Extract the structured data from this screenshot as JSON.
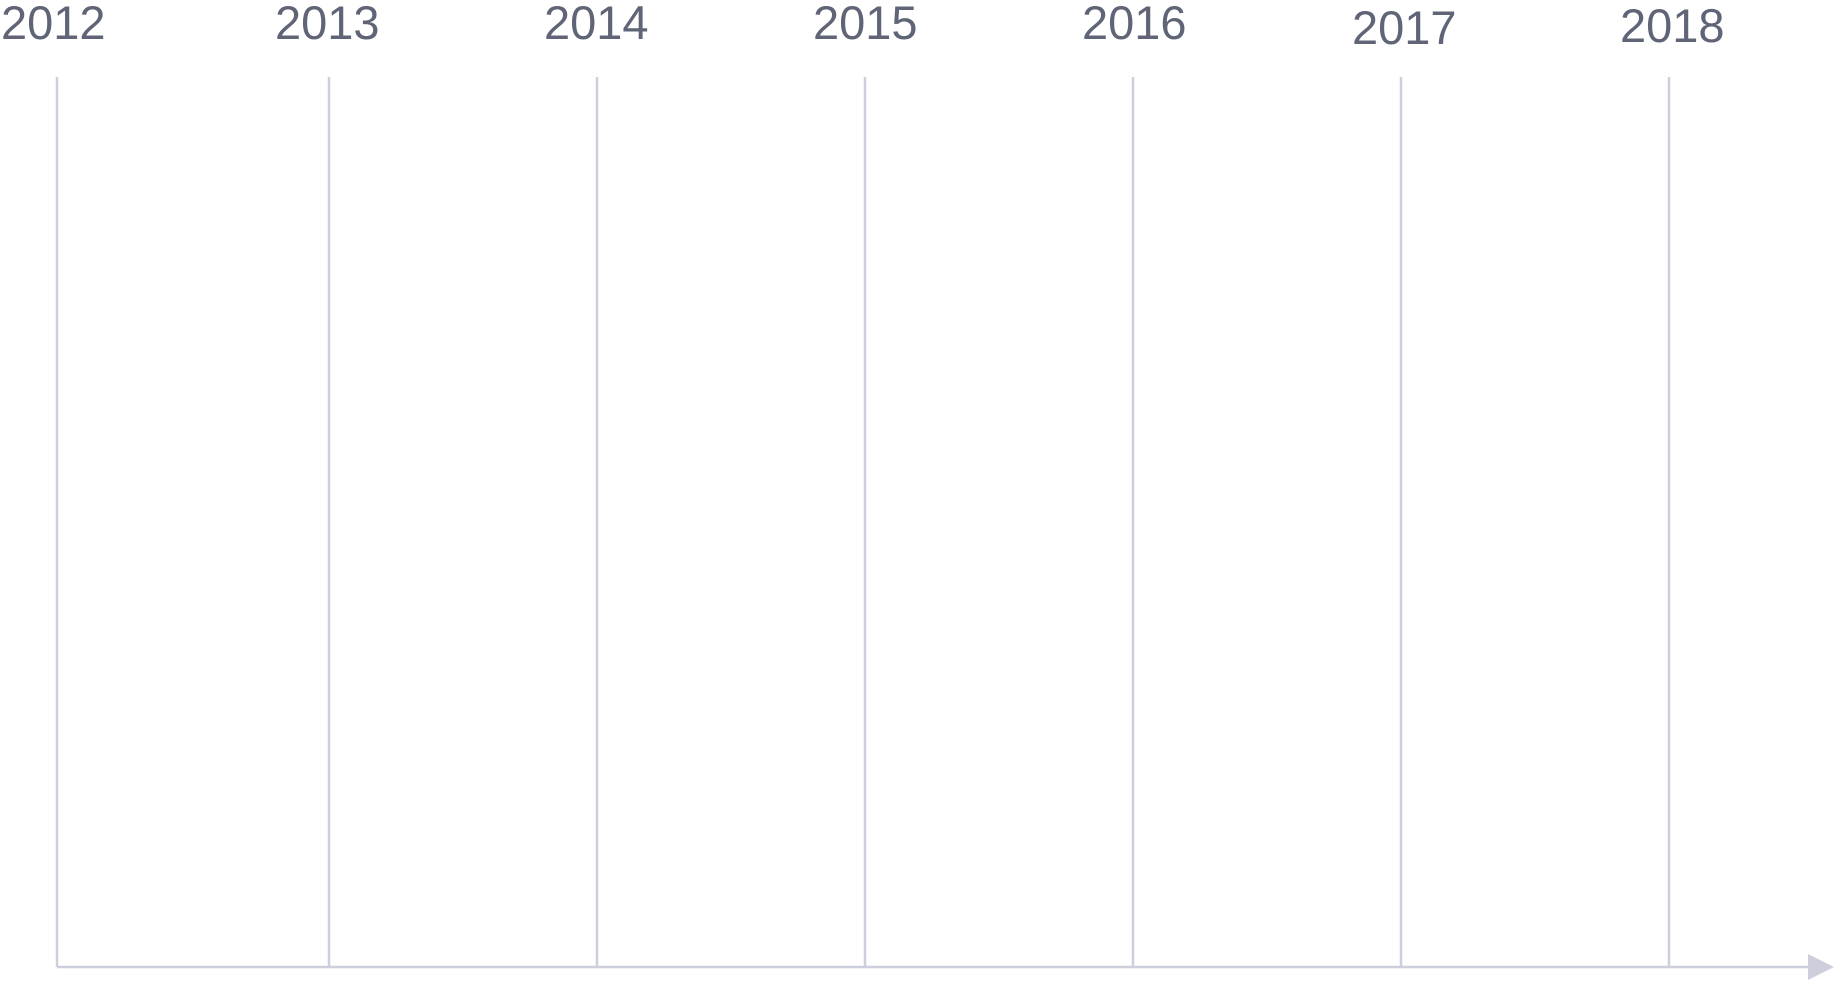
{
  "timeline": {
    "years": [
      "2012",
      "2013",
      "2014",
      "2015",
      "2016",
      "2017",
      "2018"
    ],
    "colors": {
      "label": "#5f6577",
      "line": "#cdd0dc",
      "background": "#ffffff"
    }
  }
}
